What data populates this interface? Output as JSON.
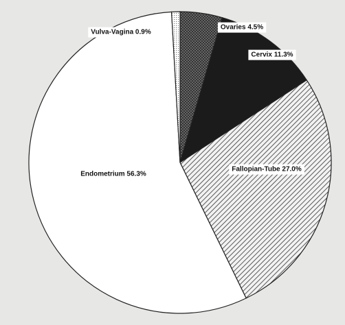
{
  "chart_data": {
    "type": "pie",
    "title": "",
    "slices": [
      {
        "label": "Ovaries",
        "value": 4.5,
        "display": "Ovaries 4.5%",
        "fill": "crosshatch",
        "label_box": true
      },
      {
        "label": "Cervix",
        "value": 11.3,
        "display": "Cervix 11.3%",
        "fill": "dark",
        "label_box": true
      },
      {
        "label": "Fallopian-Tube",
        "value": 27.0,
        "display": "Fallopian-Tube 27.0%",
        "fill": "hatch",
        "label_box": true
      },
      {
        "label": "Endometrium",
        "value": 56.3,
        "display": "Endometrium 56.3%",
        "fill": "white",
        "label_box": false
      },
      {
        "label": "Vulva-Vagina",
        "value": 0.9,
        "display": "Vulva-Vagina 0.9%",
        "fill": "dotted",
        "label_box": true
      }
    ],
    "start_at": "top",
    "direction": "clockwise",
    "legend": "none",
    "colors": {
      "background": "#e7e7e5",
      "dark": "#1b1b1b",
      "hatch_line": "#333333",
      "white": "#ffffff",
      "outline": "#222222"
    }
  }
}
